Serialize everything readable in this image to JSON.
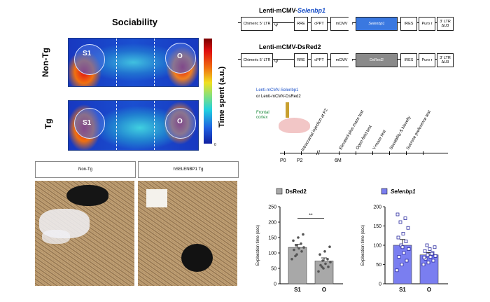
{
  "heatmap": {
    "title": "Sociability",
    "row_labels": [
      "Non-Tg",
      "Tg"
    ],
    "zone_left": "S1",
    "zone_right": "O",
    "colorbar_label": "Time spent (a.u.)",
    "colorbar_min": "0"
  },
  "photos": {
    "labels": [
      "Non-Tg",
      "hSELENBP1 Tg"
    ]
  },
  "constructs": [
    {
      "title_prefix": "Lenti-mCMV-",
      "title_gene": "Selenbp1",
      "boxes": [
        "Chimeric 5' LTR",
        "RRE",
        "cPPT",
        "mCMV",
        "Selenbp1",
        "IRES",
        "Puro r",
        "3' LTR ΔU3"
      ],
      "psi": "Ψ"
    },
    {
      "title_prefix": "Lenti-mCMV-DsRed2",
      "title_gene": "",
      "boxes": [
        "Chimeric 5' LTR",
        "RRE",
        "cPPT",
        "mCMV",
        "DsRed2",
        "IRES",
        "Puro r",
        "3' LTR ΔU3"
      ],
      "psi": "Ψ"
    }
  ],
  "timeline": {
    "virus_line1": "Lenti-mCMV-Selenbp1",
    "virus_line2": "or Lenti-mCMV-DsRed2",
    "region": "Frontal cortex",
    "events": [
      "Intracranial injection at P2",
      "Elevated-plus maze test",
      "Open-field test",
      "Y-maze test",
      "Sociability & Novelty",
      "Sucrose preference test"
    ],
    "ticks": [
      "P0",
      "P2",
      "6M"
    ]
  },
  "chart_data": [
    {
      "type": "bar",
      "legend": "DsRed2",
      "categories": [
        "S1",
        "O"
      ],
      "values": [
        118,
        74
      ],
      "errors": [
        10,
        10
      ],
      "ylabel": "Exploration time (sec)",
      "ylim": [
        0,
        250
      ],
      "yticks": [
        "0",
        "50",
        "100",
        "150",
        "200",
        "250"
      ],
      "significance": "**",
      "color": "#a8a8a8",
      "point_color": "#555555",
      "points": [
        [
          80,
          95,
          105,
          110,
          115,
          118,
          125,
          130,
          140,
          150,
          160,
          90
        ],
        [
          40,
          50,
          55,
          60,
          65,
          70,
          75,
          80,
          95,
          105,
          120,
          55
        ]
      ]
    },
    {
      "type": "bar",
      "legend": "Selenbp1",
      "categories": [
        "S1",
        "O"
      ],
      "values": [
        100,
        75
      ],
      "errors": [
        15,
        6
      ],
      "ylabel": "Exploration time (sec)",
      "ylim": [
        0,
        200
      ],
      "yticks": [
        "0",
        "50",
        "100",
        "150",
        "200"
      ],
      "significance": "",
      "color": "#7a7ef0",
      "point_color": "#2a2aa0",
      "points": [
        [
          35,
          50,
          60,
          70,
          80,
          90,
          100,
          110,
          120,
          130,
          145,
          160,
          170,
          180,
          95
        ],
        [
          50,
          55,
          60,
          65,
          70,
          72,
          75,
          80,
          85,
          90,
          95,
          100,
          78,
          68
        ]
      ]
    }
  ]
}
